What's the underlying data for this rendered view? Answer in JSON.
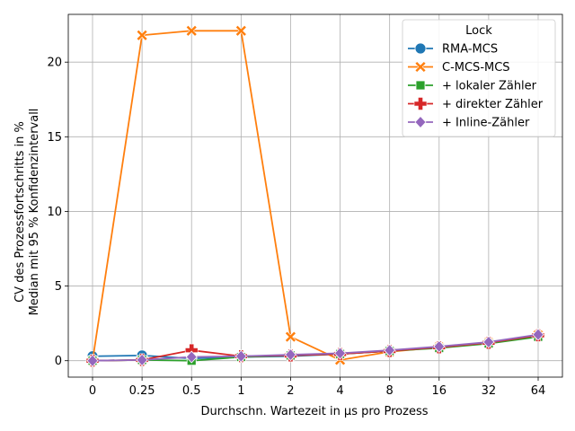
{
  "chart_data": {
    "type": "line",
    "categories": [
      "0",
      "0.25",
      "0.5",
      "1",
      "2",
      "4",
      "8",
      "16",
      "32",
      "64"
    ],
    "xlabel": "Durchschn. Wartezeit in µs pro Prozess",
    "ylabel_line1": "CV des Prozessfortschritts in %",
    "ylabel_line2": "Median mit 95 % Konfidenzintervall",
    "ylim": [
      -1.1,
      23.2
    ],
    "yticks": [
      0,
      5,
      10,
      15,
      20
    ],
    "grid": true,
    "legend_title": "Lock",
    "legend_position": "top-right",
    "series": [
      {
        "name": "RMA-MCS",
        "color": "#1f77b4",
        "marker": "circle",
        "values": [
          0.3,
          0.35,
          0.15,
          0.25,
          0.3,
          0.45,
          0.65,
          0.9,
          1.2,
          1.65
        ]
      },
      {
        "name": "C-MCS-MCS",
        "color": "#ff7f0e",
        "marker": "x",
        "values": [
          0.0,
          21.8,
          22.1,
          22.1,
          1.6,
          0.05,
          0.6,
          0.9,
          1.2,
          1.7
        ]
      },
      {
        "name": "+ lokaler Zähler",
        "color": "#2ca02c",
        "marker": "square",
        "values": [
          0.0,
          0.05,
          0.0,
          0.25,
          0.35,
          0.45,
          0.65,
          0.85,
          1.15,
          1.6
        ]
      },
      {
        "name": "+ direkter Zähler",
        "color": "#d62728",
        "marker": "plus",
        "values": [
          0.0,
          0.05,
          0.7,
          0.3,
          0.35,
          0.45,
          0.65,
          0.9,
          1.2,
          1.7
        ]
      },
      {
        "name": "+ Inline-Zähler",
        "color": "#9467bd",
        "marker": "diamond",
        "values": [
          0.0,
          0.05,
          0.25,
          0.3,
          0.4,
          0.5,
          0.7,
          0.95,
          1.25,
          1.75
        ]
      }
    ]
  }
}
